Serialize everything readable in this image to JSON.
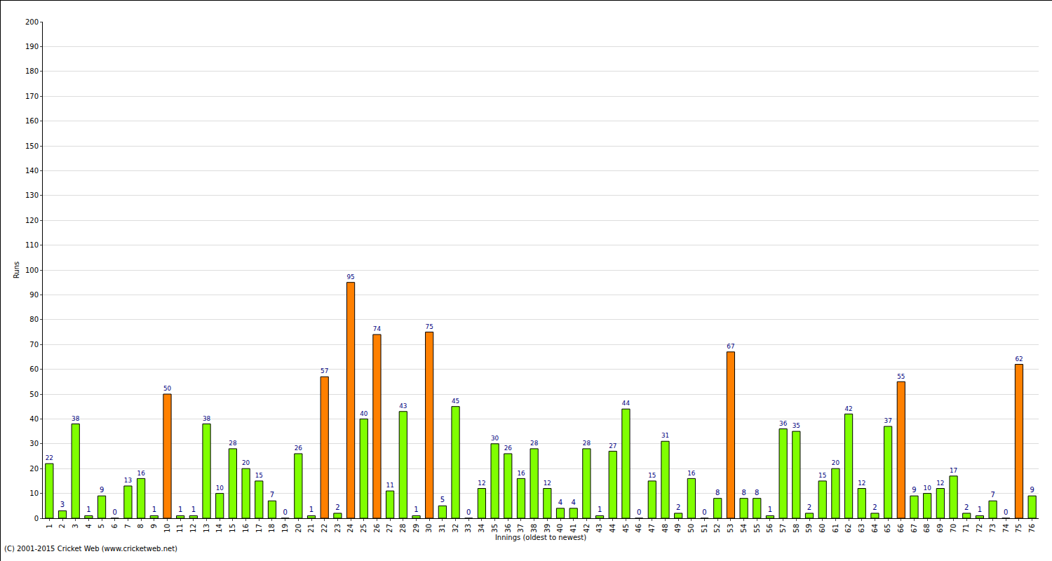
{
  "chart_data": {
    "type": "bar",
    "x_label": "Innings (oldest to newest)",
    "y_label": "Runs",
    "annotations": [
      "(C) 2001-2015 Cricket Web (www.cricketweb.net)"
    ],
    "categories": [
      "1",
      "2",
      "3",
      "4",
      "5",
      "6",
      "7",
      "8",
      "9",
      "10",
      "11",
      "12",
      "13",
      "14",
      "15",
      "16",
      "17",
      "18",
      "19",
      "20",
      "21",
      "22",
      "23",
      "24",
      "25",
      "26",
      "27",
      "28",
      "29",
      "30",
      "31",
      "32",
      "33",
      "34",
      "35",
      "36",
      "37",
      "38",
      "39",
      "40",
      "41",
      "42",
      "43",
      "44",
      "45",
      "46",
      "47",
      "48",
      "49",
      "50",
      "51",
      "52",
      "53",
      "54",
      "55",
      "56",
      "57",
      "58",
      "59",
      "60",
      "61",
      "62",
      "63",
      "64",
      "65",
      "66",
      "67",
      "68",
      "69",
      "70",
      "71",
      "72",
      "73",
      "74",
      "75",
      "76"
    ],
    "values": [
      22,
      3,
      38,
      1,
      9,
      0,
      13,
      16,
      1,
      50,
      1,
      1,
      38,
      10,
      28,
      20,
      15,
      7,
      0,
      26,
      1,
      57,
      2,
      95,
      40,
      74,
      11,
      43,
      1,
      75,
      5,
      45,
      0,
      12,
      30,
      26,
      16,
      28,
      12,
      4,
      4,
      28,
      1,
      27,
      44,
      0,
      15,
      31,
      2,
      16,
      0,
      8,
      67,
      8,
      8,
      1,
      36,
      35,
      2,
      15,
      20,
      42,
      12,
      2,
      37,
      55,
      9,
      10,
      12,
      17,
      2,
      1,
      7,
      0,
      62,
      9
    ],
    "colors": [
      "#80ff00",
      "#80ff00",
      "#80ff00",
      "#80ff00",
      "#80ff00",
      "#80ff00",
      "#80ff00",
      "#80ff00",
      "#80ff00",
      "#ff8000",
      "#80ff00",
      "#80ff00",
      "#80ff00",
      "#80ff00",
      "#80ff00",
      "#80ff00",
      "#80ff00",
      "#80ff00",
      "#80ff00",
      "#80ff00",
      "#80ff00",
      "#ff8000",
      "#80ff00",
      "#ff8000",
      "#80ff00",
      "#ff8000",
      "#80ff00",
      "#80ff00",
      "#80ff00",
      "#ff8000",
      "#80ff00",
      "#80ff00",
      "#80ff00",
      "#80ff00",
      "#80ff00",
      "#80ff00",
      "#80ff00",
      "#80ff00",
      "#80ff00",
      "#80ff00",
      "#80ff00",
      "#80ff00",
      "#80ff00",
      "#80ff00",
      "#80ff00",
      "#80ff00",
      "#80ff00",
      "#80ff00",
      "#80ff00",
      "#80ff00",
      "#80ff00",
      "#80ff00",
      "#ff8000",
      "#80ff00",
      "#80ff00",
      "#80ff00",
      "#80ff00",
      "#80ff00",
      "#80ff00",
      "#80ff00",
      "#80ff00",
      "#80ff00",
      "#80ff00",
      "#80ff00",
      "#80ff00",
      "#ff8000",
      "#80ff00",
      "#80ff00",
      "#80ff00",
      "#80ff00",
      "#80ff00",
      "#80ff00",
      "#80ff00",
      "#80ff00",
      "#ff8000",
      "#80ff00"
    ],
    "ylim": [
      0,
      200
    ],
    "yticks": [
      0,
      10,
      20,
      30,
      40,
      50,
      60,
      70,
      80,
      90,
      100,
      110,
      120,
      130,
      140,
      150,
      160,
      170,
      180,
      190,
      200
    ],
    "grid": true,
    "data_labels": true
  }
}
